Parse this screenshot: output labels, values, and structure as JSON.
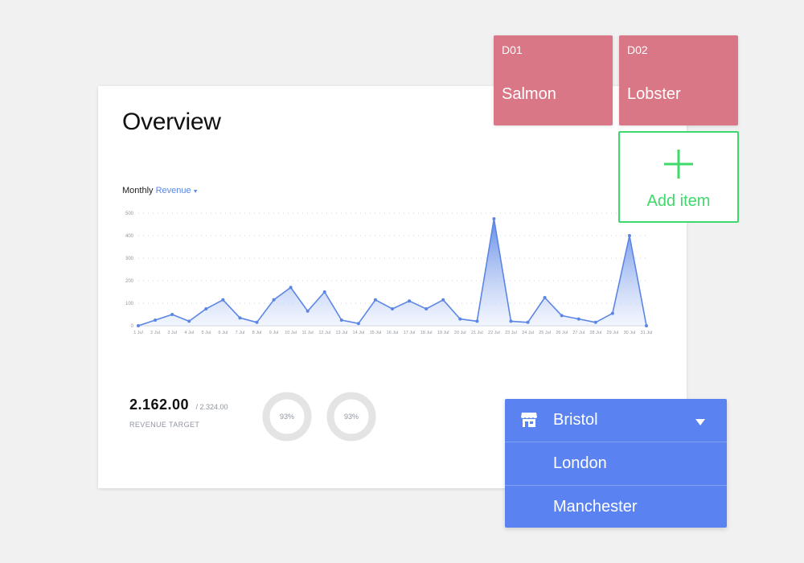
{
  "overview": {
    "title": "Overview",
    "chart_label": "Monthly",
    "chart_metric": "Revenue",
    "stat_value": "2.162.00",
    "stat_target": "/ 2.324.00",
    "stat_label": "REVENUE TARGET",
    "donuts": [
      {
        "label": "93%",
        "percent": 93
      },
      {
        "label": "93%",
        "percent": 93
      }
    ]
  },
  "chart_data": {
    "type": "area",
    "x": [
      "1 Jul",
      "2 Jul",
      "3 Jul",
      "4 Jul",
      "5 Jul",
      "6 Jul",
      "7 Jul",
      "8 Jul",
      "9 Jul",
      "10 Jul",
      "11 Jul",
      "12 Jul",
      "13 Jul",
      "14 Jul",
      "15 Jul",
      "16 Jul",
      "17 Jul",
      "18 Jul",
      "19 Jul",
      "20 Jul",
      "21 Jul",
      "22 Jul",
      "23 Jul",
      "24 Jul",
      "25 Jul",
      "26 Jul",
      "27 Jul",
      "28 Jul",
      "29 Jul",
      "30 Jul",
      "31 Jul"
    ],
    "series": [
      {
        "values": [
          0,
          25,
          50,
          20,
          75,
          115,
          35,
          15,
          115,
          170,
          65,
          150,
          25,
          10,
          115,
          75,
          110,
          75,
          115,
          30,
          20,
          475,
          20,
          15,
          125,
          45,
          30,
          15,
          55,
          400,
          0
        ]
      }
    ],
    "yticks": [
      0,
      100,
      200,
      300,
      400,
      500
    ],
    "ylim": [
      0,
      500
    ],
    "grid": true,
    "colors": {
      "line": "#5b86e5",
      "fill_top": "#5b86e5",
      "fill_bottom": "#e6edfc"
    }
  },
  "tiles": [
    {
      "code": "D01",
      "name": "Salmon"
    },
    {
      "code": "D02",
      "name": "Lobster"
    }
  ],
  "add_item": {
    "label": "Add item"
  },
  "location_dropdown": {
    "selected": "Bristol",
    "options": [
      "London",
      "Manchester"
    ]
  },
  "colors": {
    "tile": "#d97787",
    "add_item": "#3fd86b",
    "dropdown": "#5a83f1",
    "donut_track": "#e4e4e4"
  }
}
